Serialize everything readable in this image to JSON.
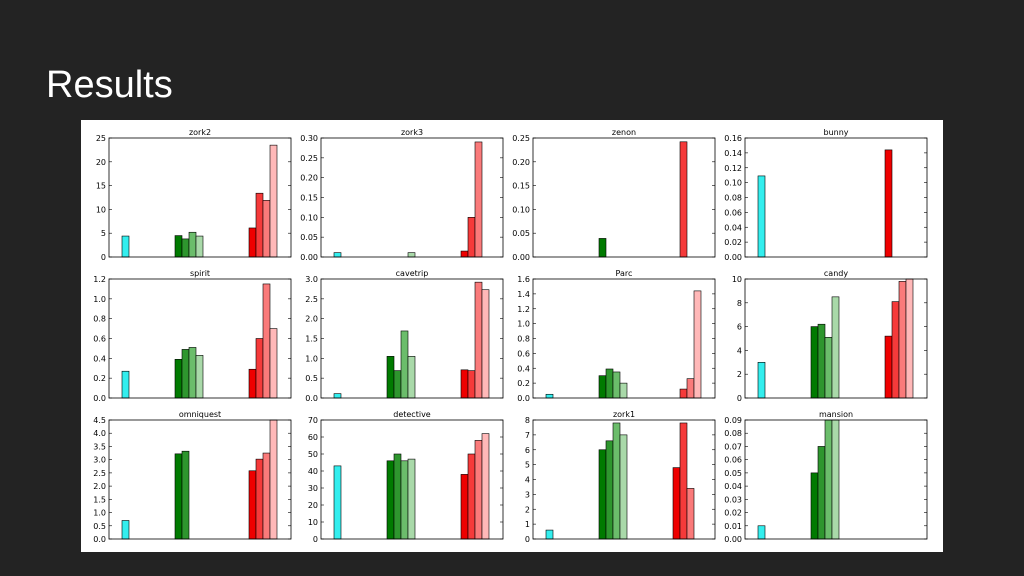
{
  "slide": {
    "title": "Results"
  },
  "colors": {
    "cyan": "#33eeee",
    "greens": [
      "#007a00",
      "#2e962e",
      "#6bbd6b",
      "#a9d9a9"
    ],
    "reds": [
      "#ee0000",
      "#f53a3a",
      "#fa7a7a",
      "#ffb8b8"
    ]
  },
  "chart_data": [
    {
      "type": "bar",
      "title": "zork2",
      "ylim": [
        0,
        25
      ],
      "yticks": [
        "0",
        "5",
        "10",
        "15",
        "20",
        "25"
      ],
      "cyan": [
        4.4
      ],
      "green": [
        4.5,
        3.8,
        5.2,
        4.4
      ],
      "red": [
        6.1,
        13.4,
        11.9,
        23.5
      ]
    },
    {
      "type": "bar",
      "title": "zork3",
      "ylim": [
        0,
        0.3
      ],
      "yticks": [
        "0.00",
        "0.05",
        "0.10",
        "0.15",
        "0.20",
        "0.25",
        "0.30"
      ],
      "cyan": [
        0.011
      ],
      "green": [
        0,
        0,
        0,
        0.011
      ],
      "red": [
        0.015,
        0.1,
        0.29,
        0
      ]
    },
    {
      "type": "bar",
      "title": "zenon",
      "ylim": [
        0,
        0.25
      ],
      "yticks": [
        "0.00",
        "0.05",
        "0.10",
        "0.15",
        "0.20",
        "0.25"
      ],
      "cyan": [
        0
      ],
      "green": [
        0.039,
        0,
        0,
        0
      ],
      "red": [
        0,
        0.242,
        0,
        0
      ]
    },
    {
      "type": "bar",
      "title": "bunny",
      "ylim": [
        0,
        0.16
      ],
      "yticks": [
        "0.00",
        "0.02",
        "0.04",
        "0.06",
        "0.08",
        "0.10",
        "0.12",
        "0.14",
        "0.16"
      ],
      "cyan": [
        0.109
      ],
      "green": [
        0,
        0,
        0,
        0
      ],
      "red": [
        0.144,
        0,
        0,
        0
      ]
    },
    {
      "type": "bar",
      "title": "spirit",
      "ylim": [
        0,
        1.2
      ],
      "yticks": [
        "0.0",
        "0.2",
        "0.4",
        "0.6",
        "0.8",
        "1.0",
        "1.2"
      ],
      "cyan": [
        0.27
      ],
      "green": [
        0.39,
        0.49,
        0.51,
        0.43
      ],
      "red": [
        0.29,
        0.6,
        1.15,
        0.7
      ]
    },
    {
      "type": "bar",
      "title": "cavetrip",
      "ylim": [
        0,
        3.0
      ],
      "yticks": [
        "0.0",
        "0.5",
        "1.0",
        "1.5",
        "2.0",
        "2.5",
        "3.0"
      ],
      "cyan": [
        0.11
      ],
      "green": [
        1.05,
        0.69,
        1.69,
        1.05
      ],
      "red": [
        0.71,
        0.69,
        2.92,
        2.73
      ]
    },
    {
      "type": "bar",
      "title": "Parc",
      "ylim": [
        0,
        1.6
      ],
      "yticks": [
        "0.0",
        "0.2",
        "0.4",
        "0.6",
        "0.8",
        "1.0",
        "1.2",
        "1.4",
        "1.6"
      ],
      "cyan": [
        0.05
      ],
      "green": [
        0.3,
        0.39,
        0.35,
        0.2
      ],
      "red": [
        0,
        0.12,
        0.26,
        1.44
      ]
    },
    {
      "type": "bar",
      "title": "candy",
      "ylim": [
        0,
        10
      ],
      "yticks": [
        "0",
        "2",
        "4",
        "6",
        "8",
        "10"
      ],
      "cyan": [
        3.0
      ],
      "green": [
        6.0,
        6.2,
        5.1,
        8.5
      ],
      "red": [
        5.2,
        8.1,
        9.8,
        10.0
      ]
    },
    {
      "type": "bar",
      "title": "omniquest",
      "ylim": [
        0,
        4.5
      ],
      "yticks": [
        "0.0",
        "0.5",
        "1.0",
        "1.5",
        "2.0",
        "2.5",
        "3.0",
        "3.5",
        "4.0",
        "4.5"
      ],
      "cyan": [
        0.7
      ],
      "green": [
        3.22,
        3.32,
        0,
        0
      ],
      "red": [
        2.58,
        3.02,
        3.25,
        4.5
      ]
    },
    {
      "type": "bar",
      "title": "detective",
      "ylim": [
        0,
        70
      ],
      "yticks": [
        "0",
        "10",
        "20",
        "30",
        "40",
        "50",
        "60",
        "70"
      ],
      "cyan": [
        43
      ],
      "green": [
        46,
        50,
        46,
        47
      ],
      "red": [
        38,
        50,
        58,
        62
      ]
    },
    {
      "type": "bar",
      "title": "zork1",
      "ylim": [
        0,
        8
      ],
      "yticks": [
        "0",
        "1",
        "2",
        "3",
        "4",
        "5",
        "6",
        "7",
        "8"
      ],
      "cyan": [
        0.6
      ],
      "green": [
        6.0,
        6.6,
        7.8,
        7.0
      ],
      "red": [
        4.8,
        7.8,
        3.4,
        0
      ]
    },
    {
      "type": "bar",
      "title": "mansion",
      "ylim": [
        0,
        0.09
      ],
      "yticks": [
        "0.00",
        "0.01",
        "0.02",
        "0.03",
        "0.04",
        "0.05",
        "0.06",
        "0.07",
        "0.08",
        "0.09"
      ],
      "cyan": [
        0.01
      ],
      "green": [
        0.05,
        0.07,
        0.09,
        0.09
      ],
      "red": [
        0,
        0,
        0,
        0
      ]
    }
  ]
}
